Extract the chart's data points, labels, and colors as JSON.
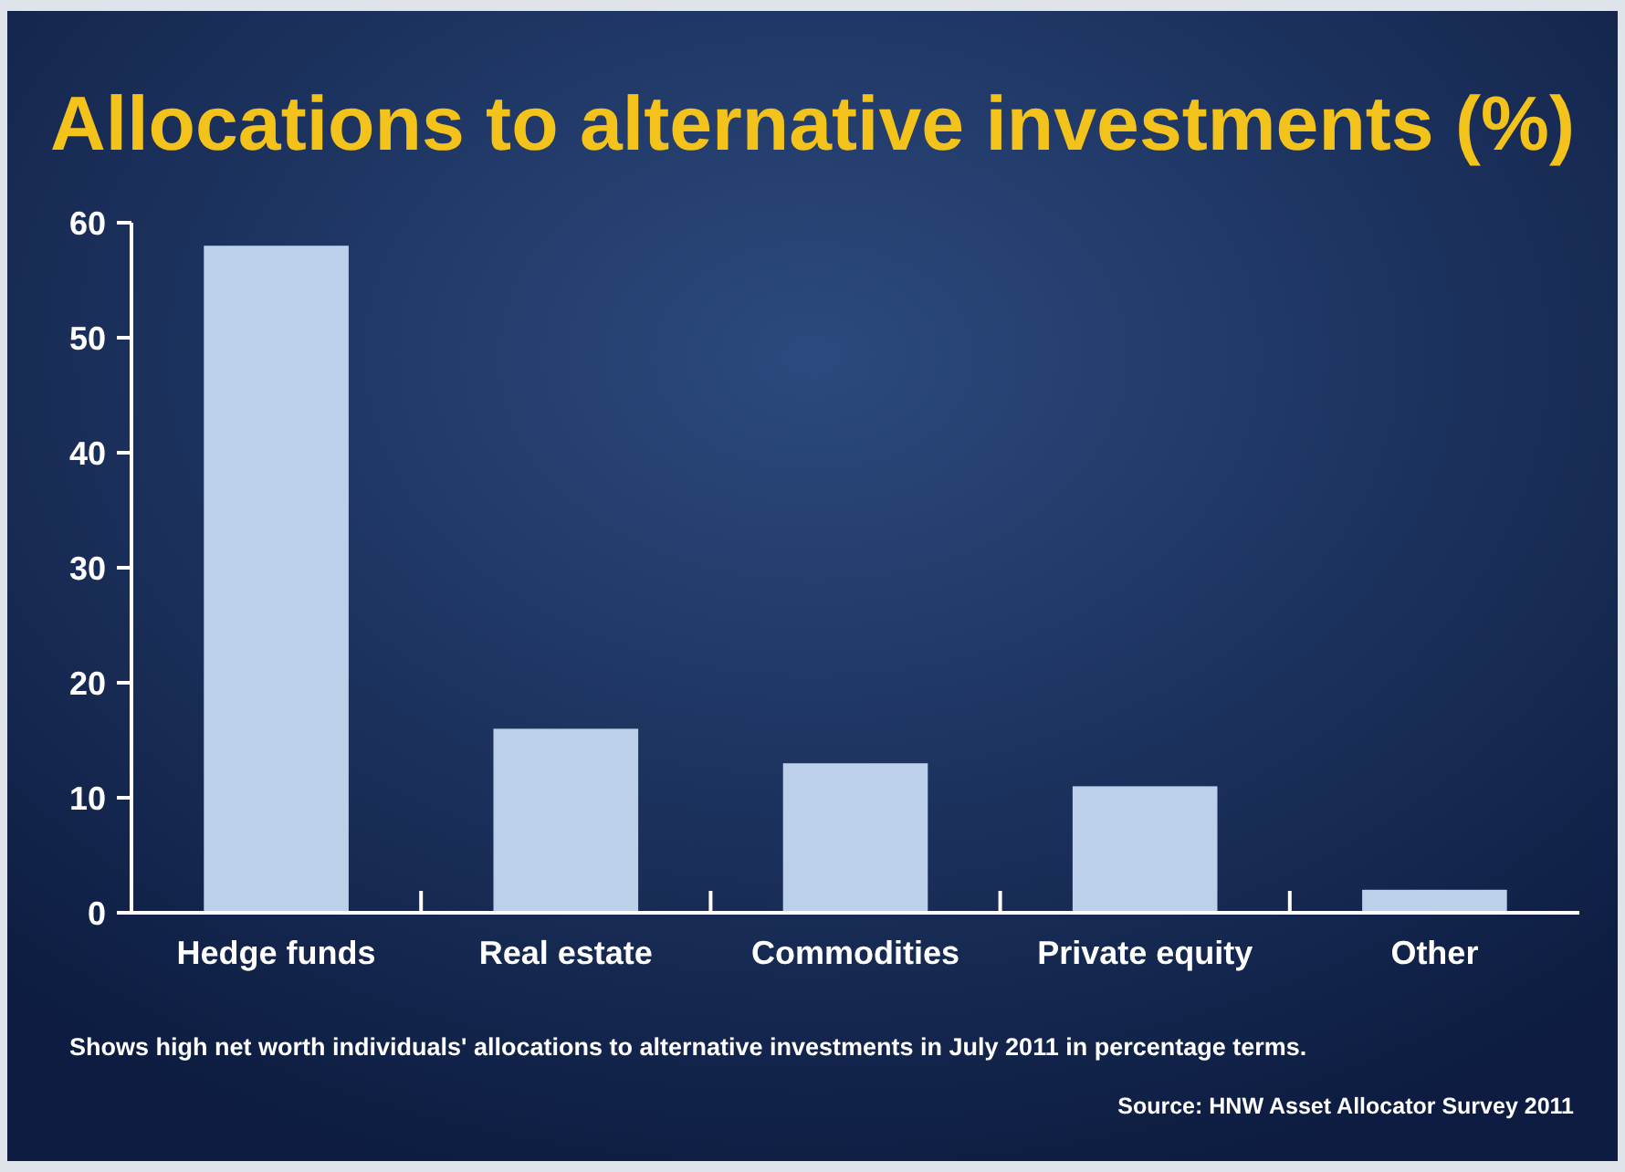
{
  "chart_data": {
    "type": "bar",
    "title": "Allocations to alternative investments (%)",
    "categories": [
      "Hedge funds",
      "Real estate",
      "Commodities",
      "Private equity",
      "Other"
    ],
    "values": [
      58,
      16,
      13,
      11,
      2
    ],
    "color": "#bdd0ea",
    "ylim": [
      0,
      60
    ],
    "yticks": [
      0,
      10,
      20,
      30,
      40,
      50,
      60
    ],
    "grid": false,
    "annotations": [
      "Shows high net worth individuals' allocations to alternative investments in July 2011 in percentage terms.",
      "Source: HNW Asset Allocator Survey 2011"
    ]
  }
}
